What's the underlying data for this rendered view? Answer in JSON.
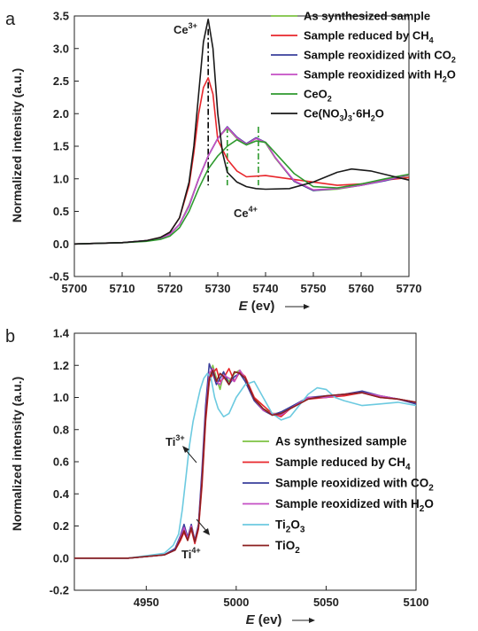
{
  "chart_data": [
    {
      "type": "line",
      "panel_label": "a",
      "xlabel_var": "E",
      "xlabel_unit": " (ev)",
      "ylabel": "Normalized intensity (a.u.)",
      "xlim": [
        5700,
        5770
      ],
      "ylim": [
        -0.5,
        3.5
      ],
      "xticks": [
        5700,
        5710,
        5720,
        5730,
        5740,
        5750,
        5760,
        5770
      ],
      "yticks": [
        -0.5,
        0.0,
        0.5,
        1.0,
        1.5,
        2.0,
        2.5,
        3.0,
        3.5
      ],
      "legend_position": "top-right",
      "annotations": [
        {
          "base": "Ce",
          "sup": "3+"
        },
        {
          "base": "Ce",
          "sup": "4+"
        }
      ],
      "markers": [
        {
          "x": 5728,
          "y0": 0.9,
          "y1": 3.3,
          "color": "#000000"
        },
        {
          "x": 5732,
          "y0": 0.9,
          "y1": 1.8,
          "color": "#2e9a2e"
        },
        {
          "x": 5738.5,
          "y0": 0.9,
          "y1": 1.8,
          "color": "#2e9a2e"
        }
      ],
      "series": [
        {
          "name": "As synthesized sample",
          "color": "#7dc242",
          "x": [
            5700,
            5710,
            5715,
            5718,
            5720,
            5722,
            5724,
            5726,
            5728,
            5730,
            5732,
            5734,
            5736,
            5738,
            5740,
            5742,
            5746,
            5750,
            5755,
            5760,
            5765,
            5770
          ],
          "y": [
            0,
            0.02,
            0.05,
            0.09,
            0.15,
            0.3,
            0.6,
            1.0,
            1.35,
            1.62,
            1.78,
            1.62,
            1.52,
            1.62,
            1.55,
            1.32,
            0.96,
            0.82,
            0.84,
            0.9,
            0.98,
            1.05
          ]
        },
        {
          "name": "Sample reduced by CH",
          "name_sub": "4",
          "color": "#e8262b",
          "x": [
            5700,
            5710,
            5715,
            5718,
            5720,
            5722,
            5724,
            5725,
            5726,
            5727,
            5728,
            5729,
            5730,
            5732,
            5734,
            5736,
            5740,
            5745,
            5750,
            5755,
            5760,
            5765,
            5770
          ],
          "y": [
            0,
            0.02,
            0.05,
            0.1,
            0.18,
            0.4,
            0.9,
            1.4,
            2.0,
            2.4,
            2.55,
            2.3,
            1.6,
            1.3,
            1.12,
            1.03,
            1.05,
            1.0,
            0.95,
            0.9,
            0.92,
            0.98,
            1.02
          ]
        },
        {
          "name": "Sample reoxidized with CO",
          "name_sub": "2",
          "color": "#3a3f9c",
          "x": [
            5700,
            5710,
            5715,
            5718,
            5720,
            5722,
            5724,
            5726,
            5728,
            5730,
            5732,
            5734,
            5736,
            5738,
            5740,
            5742,
            5746,
            5750,
            5755,
            5760,
            5765,
            5770
          ],
          "y": [
            0,
            0.02,
            0.05,
            0.09,
            0.15,
            0.3,
            0.58,
            1.0,
            1.35,
            1.62,
            1.8,
            1.64,
            1.54,
            1.63,
            1.56,
            1.33,
            0.96,
            0.82,
            0.85,
            0.9,
            0.97,
            1.06
          ]
        },
        {
          "name": "Sample reoxidized with H",
          "name_sub": "2",
          "name_tail": "O",
          "color": "#c44fc4",
          "x": [
            5700,
            5710,
            5715,
            5718,
            5720,
            5722,
            5724,
            5726,
            5728,
            5730,
            5732,
            5734,
            5736,
            5738,
            5740,
            5742,
            5746,
            5750,
            5755,
            5760,
            5765,
            5770
          ],
          "y": [
            0,
            0.02,
            0.05,
            0.09,
            0.15,
            0.3,
            0.59,
            1.0,
            1.35,
            1.62,
            1.79,
            1.63,
            1.53,
            1.62,
            1.56,
            1.33,
            0.97,
            0.83,
            0.85,
            0.9,
            0.98,
            1.06
          ]
        },
        {
          "name": "CeO",
          "name_sub": "2",
          "color": "#2e9a2e",
          "x": [
            5700,
            5710,
            5715,
            5718,
            5720,
            5722,
            5724,
            5726,
            5728,
            5730,
            5732,
            5734,
            5736,
            5738,
            5740,
            5742,
            5746,
            5750,
            5755,
            5760,
            5765,
            5770
          ],
          "y": [
            0,
            0.02,
            0.04,
            0.07,
            0.12,
            0.25,
            0.5,
            0.85,
            1.15,
            1.35,
            1.5,
            1.6,
            1.52,
            1.58,
            1.56,
            1.4,
            1.08,
            0.88,
            0.86,
            0.92,
            1.0,
            1.07
          ]
        },
        {
          "name": "Ce(NO",
          "name_sub": "3",
          "name_tail": ")",
          "name_sub2": "3",
          "name_tail2": "·6H",
          "name_sub3": "2",
          "name_tail3": "O",
          "color": "#1a1a1a",
          "x": [
            5700,
            5710,
            5715,
            5718,
            5720,
            5722,
            5724,
            5725,
            5726,
            5727,
            5728,
            5729,
            5730,
            5731,
            5732,
            5734,
            5736,
            5738,
            5740,
            5745,
            5750,
            5755,
            5758,
            5762,
            5766,
            5770
          ],
          "y": [
            0,
            0.02,
            0.05,
            0.1,
            0.18,
            0.4,
            0.95,
            1.5,
            2.3,
            3.1,
            3.45,
            3.0,
            2.0,
            1.4,
            1.1,
            0.95,
            0.88,
            0.85,
            0.84,
            0.85,
            0.95,
            1.1,
            1.15,
            1.12,
            1.05,
            0.98
          ]
        }
      ]
    },
    {
      "type": "line",
      "panel_label": "b",
      "xlabel_var": "E",
      "xlabel_unit": " (ev)",
      "ylabel": "Normalized intensity (a.u.)",
      "xlim": [
        4910,
        5100
      ],
      "ylim": [
        -0.2,
        1.4
      ],
      "xticks": [
        4950,
        5000,
        5050,
        5100
      ],
      "yticks": [
        -0.2,
        0.0,
        0.2,
        0.4,
        0.6,
        0.8,
        1.0,
        1.2,
        1.4
      ],
      "legend_position": "bottom-right",
      "annotations": [
        {
          "base": "Ti",
          "sup": "3+"
        },
        {
          "base": "Ti",
          "sup": "4+"
        }
      ],
      "series": [
        {
          "name": "As synthesized sample",
          "color": "#7dc242",
          "x": [
            4910,
            4940,
            4960,
            4966,
            4969,
            4971,
            4973,
            4975,
            4977,
            4979,
            4981,
            4983,
            4985,
            4987,
            4989,
            4991,
            4993,
            4996,
            4999,
            5002,
            5005,
            5010,
            5015,
            5020,
            5025,
            5030,
            5040,
            5050,
            5060,
            5070,
            5080,
            5090,
            5100
          ],
          "y": [
            0,
            0,
            0.02,
            0.05,
            0.12,
            0.18,
            0.12,
            0.2,
            0.1,
            0.2,
            0.5,
            0.9,
            1.1,
            1.2,
            1.12,
            1.05,
            1.15,
            1.1,
            1.15,
            1.17,
            1.12,
            1.0,
            0.93,
            0.9,
            0.9,
            0.93,
            1.0,
            1.0,
            1.02,
            1.03,
            1.01,
            0.99,
            0.97
          ]
        },
        {
          "name": "Sample reduced by CH",
          "name_sub": "4",
          "color": "#e8262b",
          "x": [
            4910,
            4940,
            4960,
            4966,
            4969,
            4971,
            4973,
            4975,
            4977,
            4979,
            4981,
            4983,
            4985,
            4987,
            4989,
            4991,
            4993,
            4996,
            4999,
            5002,
            5005,
            5010,
            5015,
            5020,
            5025,
            5030,
            5040,
            5050,
            5060,
            5070,
            5080,
            5090,
            5100
          ],
          "y": [
            0,
            0,
            0.02,
            0.05,
            0.11,
            0.16,
            0.11,
            0.18,
            0.09,
            0.18,
            0.45,
            0.85,
            1.1,
            1.15,
            1.18,
            1.1,
            1.12,
            1.18,
            1.1,
            1.16,
            1.13,
            1.0,
            0.95,
            0.9,
            0.88,
            0.93,
            0.99,
            1.0,
            1.01,
            1.03,
            1.0,
            0.99,
            0.97
          ]
        },
        {
          "name": "Sample reoxidized with CO",
          "name_sub": "2",
          "color": "#3a3f9c",
          "x": [
            4910,
            4940,
            4960,
            4966,
            4969,
            4971,
            4973,
            4975,
            4977,
            4979,
            4981,
            4983,
            4985,
            4987,
            4989,
            4991,
            4993,
            4996,
            4999,
            5002,
            5005,
            5010,
            5015,
            5020,
            5025,
            5030,
            5040,
            5050,
            5060,
            5070,
            5080,
            5090,
            5100
          ],
          "y": [
            0,
            0,
            0.02,
            0.06,
            0.14,
            0.21,
            0.13,
            0.21,
            0.11,
            0.21,
            0.55,
            0.95,
            1.21,
            1.15,
            1.08,
            1.12,
            1.16,
            1.08,
            1.13,
            1.15,
            1.1,
            0.98,
            0.92,
            0.89,
            0.91,
            0.94,
            1.0,
            1.01,
            1.02,
            1.04,
            1.01,
            0.99,
            0.96
          ]
        },
        {
          "name": "Sample reoxidized with H",
          "name_sub": "2",
          "name_tail": "O",
          "color": "#c44fc4",
          "x": [
            4910,
            4940,
            4960,
            4966,
            4969,
            4971,
            4973,
            4975,
            4977,
            4979,
            4981,
            4983,
            4985,
            4987,
            4989,
            4991,
            4993,
            4996,
            4999,
            5002,
            5005,
            5010,
            5015,
            5020,
            5025,
            5030,
            5040,
            5050,
            5060,
            5070,
            5080,
            5090,
            5100
          ],
          "y": [
            0,
            0,
            0.02,
            0.05,
            0.13,
            0.19,
            0.12,
            0.2,
            0.1,
            0.2,
            0.5,
            0.9,
            1.15,
            1.18,
            1.1,
            1.08,
            1.14,
            1.12,
            1.1,
            1.17,
            1.12,
            0.99,
            0.92,
            0.9,
            0.89,
            0.93,
            1.0,
            1.0,
            1.02,
            1.03,
            1.01,
            0.99,
            0.97
          ]
        },
        {
          "name": "Ti",
          "name_sub": "2",
          "name_tail": "O",
          "name_sub2": "3",
          "color": "#6ccae0",
          "x": [
            4910,
            4940,
            4960,
            4965,
            4968,
            4970,
            4972,
            4974,
            4976,
            4978,
            4980,
            4982,
            4984,
            4986,
            4988,
            4990,
            4993,
            4996,
            5000,
            5005,
            5010,
            5015,
            5020,
            5025,
            5030,
            5035,
            5040,
            5045,
            5050,
            5055,
            5060,
            5070,
            5080,
            5090,
            5100
          ],
          "y": [
            0,
            0,
            0.03,
            0.08,
            0.15,
            0.3,
            0.5,
            0.7,
            0.85,
            0.95,
            1.05,
            1.12,
            1.15,
            1.12,
            1.0,
            0.93,
            0.88,
            0.9,
            1.0,
            1.08,
            1.1,
            1.0,
            0.9,
            0.86,
            0.88,
            0.95,
            1.02,
            1.06,
            1.05,
            1.0,
            0.98,
            0.95,
            0.96,
            0.97,
            0.95
          ]
        },
        {
          "name": "TiO",
          "name_sub": "2",
          "color": "#8b1f1f",
          "x": [
            4910,
            4940,
            4960,
            4966,
            4969,
            4971,
            4973,
            4975,
            4977,
            4979,
            4981,
            4983,
            4985,
            4987,
            4989,
            4991,
            4993,
            4996,
            4999,
            5002,
            5005,
            5010,
            5015,
            5020,
            5025,
            5030,
            5040,
            5050,
            5060,
            5070,
            5080,
            5090,
            5100
          ],
          "y": [
            0,
            0,
            0.02,
            0.05,
            0.12,
            0.17,
            0.11,
            0.19,
            0.1,
            0.19,
            0.48,
            0.88,
            1.12,
            1.17,
            1.1,
            1.15,
            1.13,
            1.08,
            1.16,
            1.15,
            1.12,
            0.99,
            0.93,
            0.89,
            0.9,
            0.93,
            0.99,
            1.01,
            1.02,
            1.03,
            1.0,
            0.99,
            0.97
          ]
        }
      ]
    }
  ]
}
